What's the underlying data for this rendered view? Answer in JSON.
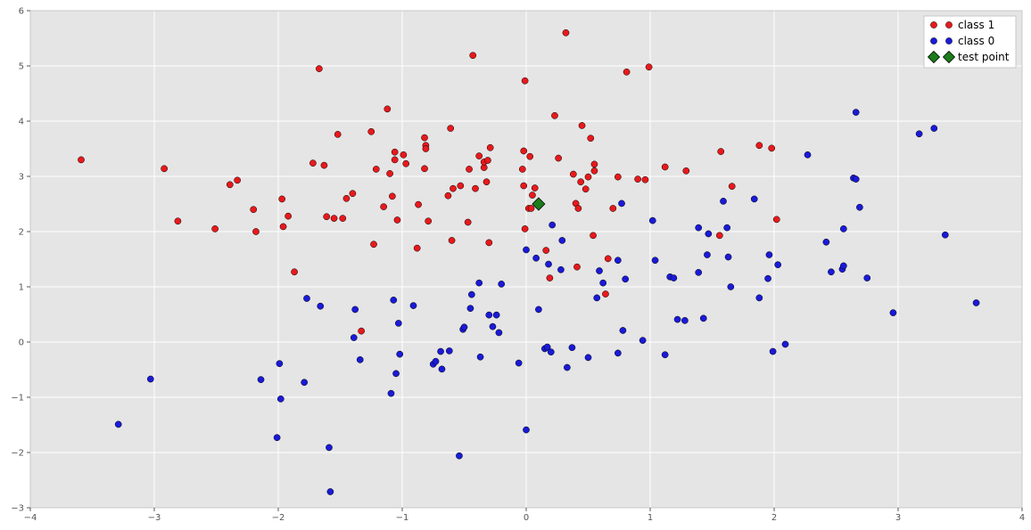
{
  "chart_data": {
    "type": "scatter",
    "title": "",
    "xlabel": "",
    "ylabel": "",
    "xlim": [
      -4,
      4
    ],
    "ylim": [
      -3,
      6
    ],
    "grid": true,
    "legend_position": "top-right",
    "x_ticks": [
      -4,
      -3,
      -2,
      -1,
      0,
      1,
      2,
      3,
      4
    ],
    "x_tick_labels": [
      "−4",
      "−3",
      "−2",
      "−1",
      "0",
      "1",
      "2",
      "3",
      "4"
    ],
    "y_ticks": [
      -3,
      -2,
      -1,
      0,
      1,
      2,
      3,
      4,
      5,
      6
    ],
    "y_tick_labels": [
      "−3",
      "−2",
      "−1",
      "0",
      "1",
      "2",
      "3",
      "4",
      "5",
      "6"
    ],
    "colors": {
      "plot_background": "#e5e5e5",
      "grid": "#ffffff",
      "class1": "#e8191c",
      "class0": "#1a1ad9",
      "test_point": "#1a7d1a"
    },
    "series": [
      {
        "name": "class 1",
        "marker": "circle",
        "color": "#e8191c",
        "points": [
          [
            -3.59,
            3.3
          ],
          [
            -2.92,
            3.14
          ],
          [
            -2.81,
            2.19
          ],
          [
            -2.51,
            2.05
          ],
          [
            -2.39,
            2.85
          ],
          [
            -2.33,
            2.93
          ],
          [
            -2.2,
            2.4
          ],
          [
            -2.18,
            2.0
          ],
          [
            -1.97,
            2.59
          ],
          [
            -1.96,
            2.09
          ],
          [
            -1.92,
            2.28
          ],
          [
            -1.87,
            1.27
          ],
          [
            -1.72,
            3.24
          ],
          [
            -1.67,
            4.95
          ],
          [
            -1.63,
            3.2
          ],
          [
            -1.61,
            2.27
          ],
          [
            -1.55,
            2.24
          ],
          [
            -1.52,
            3.76
          ],
          [
            -1.48,
            2.24
          ],
          [
            -1.45,
            2.6
          ],
          [
            -1.4,
            2.69
          ],
          [
            -1.33,
            0.2
          ],
          [
            -1.25,
            3.81
          ],
          [
            -1.23,
            1.77
          ],
          [
            -1.21,
            3.13
          ],
          [
            -1.15,
            2.45
          ],
          [
            -1.12,
            4.22
          ],
          [
            -1.1,
            3.05
          ],
          [
            -1.08,
            2.64
          ],
          [
            -1.06,
            3.44
          ],
          [
            -1.06,
            3.3
          ],
          [
            -1.04,
            2.21
          ],
          [
            -0.99,
            3.39
          ],
          [
            -0.97,
            3.23
          ],
          [
            -0.88,
            1.7
          ],
          [
            -0.87,
            2.49
          ],
          [
            -0.82,
            3.7
          ],
          [
            -0.82,
            3.14
          ],
          [
            -0.81,
            3.56
          ],
          [
            -0.81,
            3.5
          ],
          [
            -0.79,
            2.19
          ],
          [
            -0.63,
            2.65
          ],
          [
            -0.61,
            3.87
          ],
          [
            -0.6,
            1.84
          ],
          [
            -0.59,
            2.78
          ],
          [
            -0.53,
            2.83
          ],
          [
            -0.47,
            2.17
          ],
          [
            -0.46,
            3.13
          ],
          [
            -0.43,
            5.19
          ],
          [
            -0.41,
            2.78
          ],
          [
            -0.38,
            3.37
          ],
          [
            -0.34,
            3.16
          ],
          [
            -0.34,
            3.26
          ],
          [
            -0.32,
            2.9
          ],
          [
            -0.31,
            3.29
          ],
          [
            -0.3,
            1.8
          ],
          [
            -0.29,
            3.52
          ],
          [
            -0.03,
            3.13
          ],
          [
            -0.02,
            2.83
          ],
          [
            -0.02,
            3.46
          ],
          [
            -0.01,
            4.73
          ],
          [
            -0.01,
            2.05
          ],
          [
            0.02,
            2.42
          ],
          [
            0.03,
            3.36
          ],
          [
            0.04,
            2.42
          ],
          [
            0.05,
            2.66
          ],
          [
            0.07,
            2.79
          ],
          [
            0.16,
            1.66
          ],
          [
            0.19,
            1.16
          ],
          [
            0.23,
            4.1
          ],
          [
            0.26,
            3.33
          ],
          [
            0.32,
            5.6
          ],
          [
            0.38,
            3.04
          ],
          [
            0.4,
            2.51
          ],
          [
            0.41,
            1.36
          ],
          [
            0.42,
            2.42
          ],
          [
            0.44,
            2.9
          ],
          [
            0.45,
            3.92
          ],
          [
            0.48,
            2.77
          ],
          [
            0.5,
            2.99
          ],
          [
            0.52,
            3.69
          ],
          [
            0.54,
            1.93
          ],
          [
            0.55,
            3.1
          ],
          [
            0.55,
            3.22
          ],
          [
            0.64,
            0.87
          ],
          [
            0.66,
            1.51
          ],
          [
            0.7,
            2.42
          ],
          [
            0.74,
            2.99
          ],
          [
            0.81,
            4.89
          ],
          [
            0.9,
            2.95
          ],
          [
            0.96,
            2.94
          ],
          [
            0.99,
            4.98
          ],
          [
            1.12,
            3.17
          ],
          [
            1.29,
            3.1
          ],
          [
            1.56,
            1.93
          ],
          [
            1.57,
            3.45
          ],
          [
            1.66,
            2.82
          ],
          [
            1.88,
            3.56
          ],
          [
            1.98,
            3.51
          ],
          [
            2.02,
            2.22
          ]
        ]
      },
      {
        "name": "class 0",
        "marker": "circle",
        "color": "#1a1ad9",
        "points": [
          [
            -3.29,
            -1.49
          ],
          [
            -3.03,
            -0.67
          ],
          [
            -2.14,
            -0.68
          ],
          [
            -2.01,
            -1.73
          ],
          [
            -1.99,
            -0.39
          ],
          [
            -1.98,
            -1.03
          ],
          [
            -1.79,
            -0.73
          ],
          [
            -1.77,
            0.79
          ],
          [
            -1.66,
            0.65
          ],
          [
            -1.59,
            -1.91
          ],
          [
            -1.58,
            -2.71
          ],
          [
            -1.39,
            0.08
          ],
          [
            -1.38,
            0.59
          ],
          [
            -1.34,
            -0.32
          ],
          [
            -1.09,
            -0.93
          ],
          [
            -1.07,
            0.76
          ],
          [
            -1.05,
            -0.57
          ],
          [
            -1.03,
            0.34
          ],
          [
            -1.02,
            -0.22
          ],
          [
            -0.91,
            0.66
          ],
          [
            -0.75,
            -0.4
          ],
          [
            -0.73,
            -0.35
          ],
          [
            -0.69,
            -0.17
          ],
          [
            -0.68,
            -0.49
          ],
          [
            -0.62,
            -0.16
          ],
          [
            -0.54,
            -2.06
          ],
          [
            -0.51,
            0.23
          ],
          [
            -0.5,
            0.27
          ],
          [
            -0.45,
            0.61
          ],
          [
            -0.44,
            0.86
          ],
          [
            -0.38,
            1.07
          ],
          [
            -0.37,
            -0.27
          ],
          [
            -0.3,
            0.49
          ],
          [
            -0.27,
            0.28
          ],
          [
            -0.24,
            0.49
          ],
          [
            -0.22,
            0.17
          ],
          [
            -0.2,
            1.05
          ],
          [
            -0.06,
            -0.38
          ],
          [
            0.0,
            -1.59
          ],
          [
            0.0,
            1.67
          ],
          [
            0.08,
            1.52
          ],
          [
            0.1,
            0.59
          ],
          [
            0.15,
            -0.12
          ],
          [
            0.17,
            -0.09
          ],
          [
            0.18,
            1.41
          ],
          [
            0.2,
            -0.18
          ],
          [
            0.21,
            2.12
          ],
          [
            0.28,
            1.31
          ],
          [
            0.29,
            1.84
          ],
          [
            0.33,
            -0.46
          ],
          [
            0.37,
            -0.1
          ],
          [
            0.5,
            -0.28
          ],
          [
            0.57,
            0.8
          ],
          [
            0.59,
            1.29
          ],
          [
            0.62,
            1.07
          ],
          [
            0.74,
            1.48
          ],
          [
            0.74,
            -0.2
          ],
          [
            0.77,
            2.51
          ],
          [
            0.78,
            0.21
          ],
          [
            0.8,
            1.14
          ],
          [
            0.94,
            0.03
          ],
          [
            1.02,
            2.2
          ],
          [
            1.04,
            1.48
          ],
          [
            1.12,
            -0.23
          ],
          [
            1.16,
            1.18
          ],
          [
            1.19,
            1.16
          ],
          [
            1.22,
            0.41
          ],
          [
            1.28,
            0.39
          ],
          [
            1.39,
            2.07
          ],
          [
            1.39,
            1.26
          ],
          [
            1.43,
            0.43
          ],
          [
            1.46,
            1.58
          ],
          [
            1.47,
            1.96
          ],
          [
            1.59,
            2.55
          ],
          [
            1.62,
            2.07
          ],
          [
            1.63,
            1.54
          ],
          [
            1.65,
            1.0
          ],
          [
            1.84,
            2.59
          ],
          [
            1.88,
            0.8
          ],
          [
            1.95,
            1.15
          ],
          [
            1.96,
            1.58
          ],
          [
            1.99,
            -0.17
          ],
          [
            2.03,
            1.4
          ],
          [
            2.09,
            -0.04
          ],
          [
            2.27,
            3.39
          ],
          [
            2.42,
            1.81
          ],
          [
            2.46,
            1.27
          ],
          [
            2.55,
            1.32
          ],
          [
            2.56,
            2.05
          ],
          [
            2.56,
            1.38
          ],
          [
            2.64,
            2.97
          ],
          [
            2.66,
            4.16
          ],
          [
            2.66,
            2.95
          ],
          [
            2.69,
            2.44
          ],
          [
            2.75,
            1.16
          ],
          [
            2.96,
            0.53
          ],
          [
            3.17,
            3.77
          ],
          [
            3.29,
            3.87
          ],
          [
            3.38,
            1.94
          ],
          [
            3.63,
            0.71
          ]
        ]
      },
      {
        "name": "test point",
        "marker": "diamond",
        "color": "#1a7d1a",
        "points": [
          [
            0.1,
            2.5
          ]
        ]
      }
    ]
  }
}
